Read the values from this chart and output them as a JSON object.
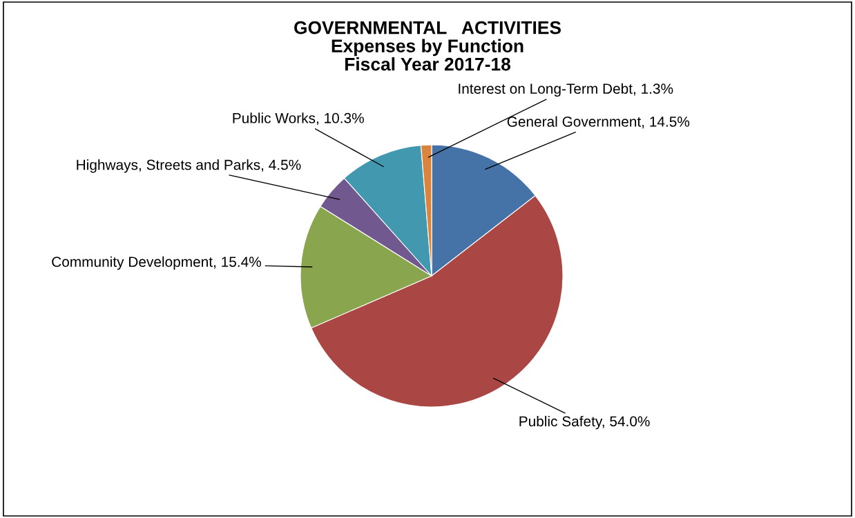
{
  "chart_data": {
    "type": "pie",
    "title": "GOVERNMENTAL   ACTIVITIES\nExpenses by Function\nFiscal Year 2017-18",
    "categories": [
      "General Government, 14.5%",
      "Public Safety, 54.0%",
      "Community Development, 15.4%",
      "Highways, Streets and Parks, 4.5%",
      "Public Works, 10.3%",
      "Interest on Long-Term Debt, 1.3%"
    ],
    "values": [
      14.5,
      54.0,
      15.4,
      4.5,
      10.3,
      1.3
    ],
    "colors": [
      "#4572a7",
      "#aa4643",
      "#89a54e",
      "#71588f",
      "#4198af",
      "#db843d"
    ]
  }
}
